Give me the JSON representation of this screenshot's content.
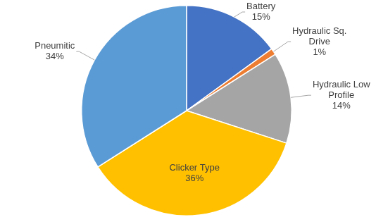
{
  "chart_data": {
    "type": "pie",
    "categories": [
      "Battery",
      "Hydraulic Sq. Drive",
      "Hydraulic Low Profile",
      "Clicker Type",
      "Pneumitic"
    ],
    "values": [
      15,
      1,
      14,
      36,
      34
    ],
    "value_labels": [
      "15%",
      "1%",
      "14%",
      "36%",
      "34%"
    ],
    "colors": [
      "#4472c4",
      "#ed7d31",
      "#a5a5a5",
      "#ffc000",
      "#5b9bd5"
    ],
    "data_labels": true
  }
}
